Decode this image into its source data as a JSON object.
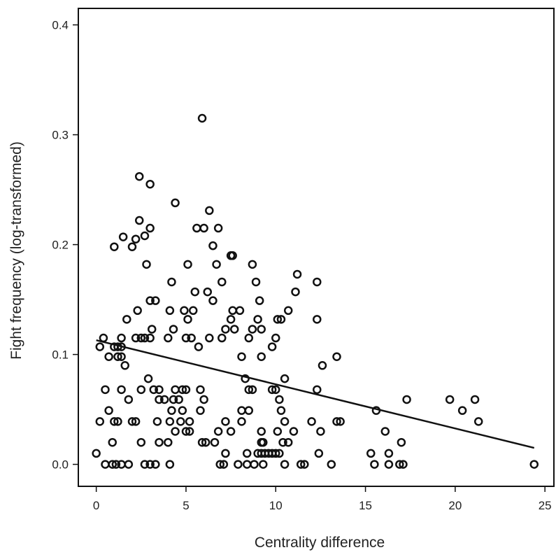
{
  "chart_data": {
    "type": "scatter",
    "xlabel": "Centrality difference",
    "ylabel": "Fight frequency (log-transformed)",
    "xlim": [
      -1,
      25.5
    ],
    "ylim": [
      -0.02,
      0.415
    ],
    "xticks": [
      0,
      5,
      10,
      15,
      20,
      25
    ],
    "yticks": [
      0.0,
      0.1,
      0.2,
      0.3,
      0.4
    ],
    "ytick_labels": [
      "0.0",
      "0.1",
      "0.2",
      "0.3",
      "0.4"
    ],
    "grid": false,
    "trendline": {
      "x": [
        0,
        24.4
      ],
      "y": [
        0.113,
        0.015
      ]
    },
    "points": [
      [
        5.9,
        0.315
      ],
      [
        2.4,
        0.262
      ],
      [
        3.0,
        0.255
      ],
      [
        4.4,
        0.238
      ],
      [
        6.3,
        0.231
      ],
      [
        2.4,
        0.222
      ],
      [
        2.7,
        0.208
      ],
      [
        3.0,
        0.215
      ],
      [
        5.6,
        0.215
      ],
      [
        6.0,
        0.215
      ],
      [
        6.8,
        0.215
      ],
      [
        1.5,
        0.207
      ],
      [
        2.2,
        0.205
      ],
      [
        2.0,
        0.198
      ],
      [
        1.0,
        0.198
      ],
      [
        6.5,
        0.199
      ],
      [
        7.5,
        0.19
      ],
      [
        7.6,
        0.19
      ],
      [
        2.8,
        0.182
      ],
      [
        5.1,
        0.182
      ],
      [
        6.7,
        0.182
      ],
      [
        8.7,
        0.182
      ],
      [
        11.2,
        0.173
      ],
      [
        4.2,
        0.166
      ],
      [
        7.0,
        0.166
      ],
      [
        8.9,
        0.166
      ],
      [
        12.3,
        0.166
      ],
      [
        5.5,
        0.157
      ],
      [
        6.2,
        0.157
      ],
      [
        11.1,
        0.157
      ],
      [
        3.0,
        0.149
      ],
      [
        3.3,
        0.149
      ],
      [
        6.5,
        0.149
      ],
      [
        9.1,
        0.149
      ],
      [
        2.3,
        0.14
      ],
      [
        4.1,
        0.14
      ],
      [
        4.9,
        0.14
      ],
      [
        5.4,
        0.14
      ],
      [
        7.6,
        0.14
      ],
      [
        8.0,
        0.14
      ],
      [
        10.7,
        0.14
      ],
      [
        1.7,
        0.132
      ],
      [
        5.1,
        0.132
      ],
      [
        7.5,
        0.132
      ],
      [
        9.0,
        0.132
      ],
      [
        10.1,
        0.132
      ],
      [
        10.3,
        0.132
      ],
      [
        12.3,
        0.132
      ],
      [
        3.1,
        0.123
      ],
      [
        4.3,
        0.123
      ],
      [
        7.2,
        0.123
      ],
      [
        7.7,
        0.123
      ],
      [
        8.7,
        0.123
      ],
      [
        9.2,
        0.123
      ],
      [
        2.2,
        0.115
      ],
      [
        2.5,
        0.115
      ],
      [
        2.7,
        0.115
      ],
      [
        3.0,
        0.115
      ],
      [
        4.0,
        0.115
      ],
      [
        5.0,
        0.115
      ],
      [
        5.3,
        0.115
      ],
      [
        6.3,
        0.115
      ],
      [
        7.0,
        0.115
      ],
      [
        8.5,
        0.115
      ],
      [
        10.0,
        0.115
      ],
      [
        0.4,
        0.115
      ],
      [
        1.4,
        0.115
      ],
      [
        0.2,
        0.107
      ],
      [
        1.0,
        0.107
      ],
      [
        1.2,
        0.107
      ],
      [
        1.4,
        0.107
      ],
      [
        5.7,
        0.107
      ],
      [
        9.8,
        0.107
      ],
      [
        0.7,
        0.098
      ],
      [
        1.2,
        0.098
      ],
      [
        1.4,
        0.098
      ],
      [
        8.1,
        0.098
      ],
      [
        9.2,
        0.098
      ],
      [
        13.4,
        0.098
      ],
      [
        1.6,
        0.09
      ],
      [
        12.6,
        0.09
      ],
      [
        2.9,
        0.078
      ],
      [
        8.3,
        0.078
      ],
      [
        10.5,
        0.078
      ],
      [
        0.5,
        0.068
      ],
      [
        1.4,
        0.068
      ],
      [
        2.5,
        0.068
      ],
      [
        3.2,
        0.068
      ],
      [
        3.5,
        0.068
      ],
      [
        4.4,
        0.068
      ],
      [
        4.8,
        0.068
      ],
      [
        5.0,
        0.068
      ],
      [
        5.8,
        0.068
      ],
      [
        8.5,
        0.068
      ],
      [
        8.7,
        0.068
      ],
      [
        9.8,
        0.068
      ],
      [
        10.0,
        0.068
      ],
      [
        12.3,
        0.068
      ],
      [
        1.8,
        0.059
      ],
      [
        3.5,
        0.059
      ],
      [
        3.8,
        0.059
      ],
      [
        4.3,
        0.059
      ],
      [
        4.6,
        0.059
      ],
      [
        6.0,
        0.059
      ],
      [
        10.2,
        0.059
      ],
      [
        17.3,
        0.059
      ],
      [
        19.7,
        0.059
      ],
      [
        21.1,
        0.059
      ],
      [
        0.7,
        0.049
      ],
      [
        4.2,
        0.049
      ],
      [
        4.8,
        0.049
      ],
      [
        5.8,
        0.049
      ],
      [
        8.1,
        0.049
      ],
      [
        8.5,
        0.049
      ],
      [
        10.3,
        0.049
      ],
      [
        15.6,
        0.049
      ],
      [
        20.4,
        0.049
      ],
      [
        0.2,
        0.039
      ],
      [
        1.0,
        0.039
      ],
      [
        1.2,
        0.039
      ],
      [
        2.0,
        0.039
      ],
      [
        2.2,
        0.039
      ],
      [
        3.4,
        0.039
      ],
      [
        4.1,
        0.039
      ],
      [
        4.7,
        0.039
      ],
      [
        5.2,
        0.039
      ],
      [
        7.2,
        0.039
      ],
      [
        8.1,
        0.039
      ],
      [
        10.5,
        0.039
      ],
      [
        12.0,
        0.039
      ],
      [
        13.4,
        0.039
      ],
      [
        13.6,
        0.039
      ],
      [
        21.3,
        0.039
      ],
      [
        4.4,
        0.03
      ],
      [
        5.0,
        0.03
      ],
      [
        5.2,
        0.03
      ],
      [
        6.8,
        0.03
      ],
      [
        7.5,
        0.03
      ],
      [
        9.2,
        0.03
      ],
      [
        10.1,
        0.03
      ],
      [
        11.0,
        0.03
      ],
      [
        12.5,
        0.03
      ],
      [
        16.1,
        0.03
      ],
      [
        0.9,
        0.02
      ],
      [
        2.5,
        0.02
      ],
      [
        3.5,
        0.02
      ],
      [
        4.0,
        0.02
      ],
      [
        5.9,
        0.02
      ],
      [
        6.1,
        0.02
      ],
      [
        6.6,
        0.02
      ],
      [
        9.2,
        0.02
      ],
      [
        9.3,
        0.02
      ],
      [
        10.4,
        0.02
      ],
      [
        10.7,
        0.02
      ],
      [
        17.0,
        0.02
      ],
      [
        0.0,
        0.01
      ],
      [
        7.2,
        0.01
      ],
      [
        8.4,
        0.01
      ],
      [
        9.0,
        0.01
      ],
      [
        9.2,
        0.01
      ],
      [
        9.4,
        0.01
      ],
      [
        9.6,
        0.01
      ],
      [
        9.8,
        0.01
      ],
      [
        10.0,
        0.01
      ],
      [
        10.2,
        0.01
      ],
      [
        12.4,
        0.01
      ],
      [
        15.3,
        0.01
      ],
      [
        16.3,
        0.01
      ],
      [
        0.5,
        0.0
      ],
      [
        0.9,
        0.0
      ],
      [
        1.1,
        0.0
      ],
      [
        1.4,
        0.0
      ],
      [
        1.8,
        0.0
      ],
      [
        2.7,
        0.0
      ],
      [
        3.0,
        0.0
      ],
      [
        3.3,
        0.0
      ],
      [
        4.1,
        0.0
      ],
      [
        6.9,
        0.0
      ],
      [
        7.1,
        0.0
      ],
      [
        7.9,
        0.0
      ],
      [
        8.4,
        0.0
      ],
      [
        8.8,
        0.0
      ],
      [
        9.3,
        0.0
      ],
      [
        10.5,
        0.0
      ],
      [
        11.4,
        0.0
      ],
      [
        11.6,
        0.0
      ],
      [
        13.1,
        0.0
      ],
      [
        15.5,
        0.0
      ],
      [
        16.3,
        0.0
      ],
      [
        16.9,
        0.0
      ],
      [
        17.1,
        0.0
      ],
      [
        24.4,
        0.0
      ]
    ]
  }
}
